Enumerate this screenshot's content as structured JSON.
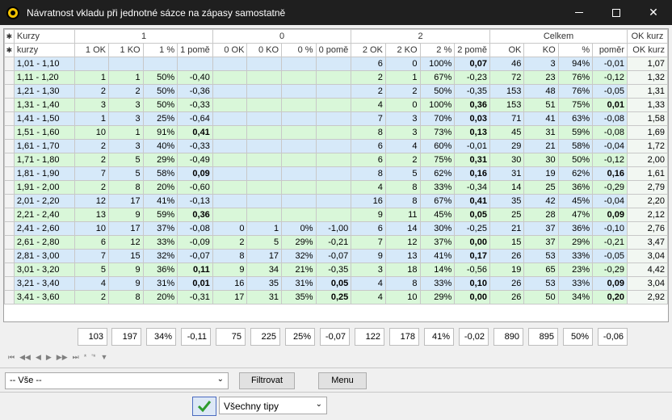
{
  "window": {
    "title": "Návratnost vkladu při jednotné sázce na zápasy samostatně"
  },
  "header": {
    "group_row": {
      "kurzy": "Kurzy",
      "g1": "1",
      "g0": "0",
      "g2": "2",
      "celkem": "Celkem",
      "okkurz": "OK kurz"
    },
    "columns": [
      "kurzy",
      "1 OK",
      "1 KO",
      "1 %",
      "1 pomě",
      "0 OK",
      "0 KO",
      "0 %",
      "0 pomě",
      "2 OK",
      "2 KO",
      "2 %",
      "2 pomě",
      "OK",
      "KO",
      "%",
      "poměr",
      "OK kurz"
    ]
  },
  "rows": [
    [
      "1,01 - 1,10",
      "",
      "",
      "",
      "",
      "",
      "",
      "",
      "",
      "6",
      "0",
      "100%",
      "0,07",
      "46",
      "3",
      "94%",
      "-0,01",
      "1,07"
    ],
    [
      "1,11 - 1,20",
      "1",
      "1",
      "50%",
      "-0,40",
      "",
      "",
      "",
      "",
      "2",
      "1",
      "67%",
      "-0,23",
      "72",
      "23",
      "76%",
      "-0,12",
      "1,32"
    ],
    [
      "1,21 - 1,30",
      "2",
      "2",
      "50%",
      "-0,36",
      "",
      "",
      "",
      "",
      "2",
      "2",
      "50%",
      "-0,35",
      "153",
      "48",
      "76%",
      "-0,05",
      "1,31"
    ],
    [
      "1,31 - 1,40",
      "3",
      "3",
      "50%",
      "-0,33",
      "",
      "",
      "",
      "",
      "4",
      "0",
      "100%",
      "0,36",
      "153",
      "51",
      "75%",
      "0,01",
      "1,33"
    ],
    [
      "1,41 - 1,50",
      "1",
      "3",
      "25%",
      "-0,64",
      "",
      "",
      "",
      "",
      "7",
      "3",
      "70%",
      "0,03",
      "71",
      "41",
      "63%",
      "-0,08",
      "1,58"
    ],
    [
      "1,51 - 1,60",
      "10",
      "1",
      "91%",
      "0,41",
      "",
      "",
      "",
      "",
      "8",
      "3",
      "73%",
      "0,13",
      "45",
      "31",
      "59%",
      "-0,08",
      "1,69"
    ],
    [
      "1,61 - 1,70",
      "2",
      "3",
      "40%",
      "-0,33",
      "",
      "",
      "",
      "",
      "6",
      "4",
      "60%",
      "-0,01",
      "29",
      "21",
      "58%",
      "-0,04",
      "1,72"
    ],
    [
      "1,71 - 1,80",
      "2",
      "5",
      "29%",
      "-0,49",
      "",
      "",
      "",
      "",
      "6",
      "2",
      "75%",
      "0,31",
      "30",
      "30",
      "50%",
      "-0,12",
      "2,00"
    ],
    [
      "1,81 - 1,90",
      "7",
      "5",
      "58%",
      "0,09",
      "",
      "",
      "",
      "",
      "8",
      "5",
      "62%",
      "0,16",
      "31",
      "19",
      "62%",
      "0,16",
      "1,61"
    ],
    [
      "1,91 - 2,00",
      "2",
      "8",
      "20%",
      "-0,60",
      "",
      "",
      "",
      "",
      "4",
      "8",
      "33%",
      "-0,34",
      "14",
      "25",
      "36%",
      "-0,29",
      "2,79"
    ],
    [
      "2,01 - 2,20",
      "12",
      "17",
      "41%",
      "-0,13",
      "",
      "",
      "",
      "",
      "16",
      "8",
      "67%",
      "0,41",
      "35",
      "42",
      "45%",
      "-0,04",
      "2,20"
    ],
    [
      "2,21 - 2,40",
      "13",
      "9",
      "59%",
      "0,36",
      "",
      "",
      "",
      "",
      "9",
      "11",
      "45%",
      "0,05",
      "25",
      "28",
      "47%",
      "0,09",
      "2,12"
    ],
    [
      "2,41 - 2,60",
      "10",
      "17",
      "37%",
      "-0,08",
      "0",
      "1",
      "0%",
      "-1,00",
      "6",
      "14",
      "30%",
      "-0,25",
      "21",
      "37",
      "36%",
      "-0,10",
      "2,76"
    ],
    [
      "2,61 - 2,80",
      "6",
      "12",
      "33%",
      "-0,09",
      "2",
      "5",
      "29%",
      "-0,21",
      "7",
      "12",
      "37%",
      "0,00",
      "15",
      "37",
      "29%",
      "-0,21",
      "3,47"
    ],
    [
      "2,81 - 3,00",
      "7",
      "15",
      "32%",
      "-0,07",
      "8",
      "17",
      "32%",
      "-0,07",
      "9",
      "13",
      "41%",
      "0,17",
      "26",
      "53",
      "33%",
      "-0,05",
      "3,04"
    ],
    [
      "3,01 - 3,20",
      "5",
      "9",
      "36%",
      "0,11",
      "9",
      "34",
      "21%",
      "-0,35",
      "3",
      "18",
      "14%",
      "-0,56",
      "19",
      "65",
      "23%",
      "-0,29",
      "4,42"
    ],
    [
      "3,21 - 3,40",
      "4",
      "9",
      "31%",
      "0,01",
      "16",
      "35",
      "31%",
      "0,05",
      "4",
      "8",
      "33%",
      "0,10",
      "26",
      "53",
      "33%",
      "0,09",
      "3,04"
    ],
    [
      "3,41 - 3,60",
      "2",
      "8",
      "20%",
      "-0,31",
      "17",
      "31",
      "35%",
      "0,25",
      "4",
      "10",
      "29%",
      "0,00",
      "26",
      "50",
      "34%",
      "0,20",
      "2,92"
    ]
  ],
  "bold_cols": [
    4,
    8,
    12,
    16
  ],
  "totals": [
    "103",
    "197",
    "34%",
    "-0,11",
    "75",
    "225",
    "25%",
    "-0,07",
    "122",
    "178",
    "41%",
    "-0,02",
    "890",
    "895",
    "50%",
    "-0,06"
  ],
  "navbar": {
    "first": "⏮",
    "prev_page": "◀◀",
    "prev": "◀",
    "next": "▶",
    "next_page": "▶▶",
    "last": "⏭",
    "add": "*",
    "add_copy": "'*",
    "filter": "▼"
  },
  "filter": {
    "selected": "-- Vše --",
    "filter_button": "Filtrovat",
    "menu_button": "Menu"
  },
  "bottom": {
    "tips_selected": "Všechny tipy"
  },
  "colors": {
    "row_blue": "#d6e9f9",
    "row_green": "#d9f7d9",
    "titlebar": "#1f1f1f"
  }
}
